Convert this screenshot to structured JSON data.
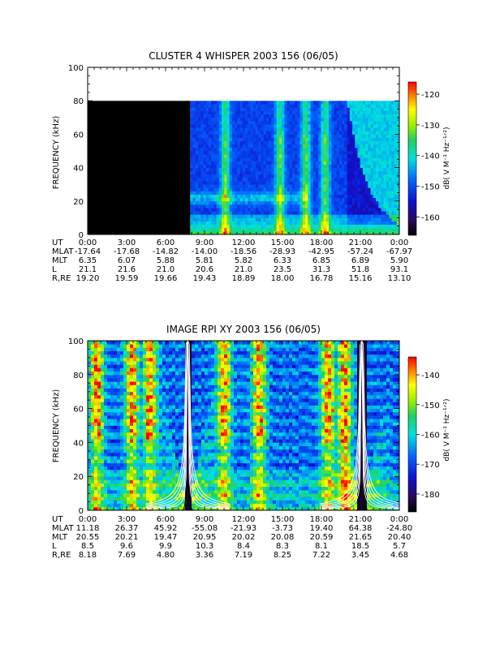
{
  "chart_data": [
    {
      "type": "heatmap",
      "title": "CLUSTER 4 WHISPER 2003 156 (06/05)",
      "ylabel": "FREQUENCY (kHz)",
      "ylim": [
        0,
        100
      ],
      "yticks": [
        0,
        20,
        40,
        60,
        80,
        100
      ],
      "xlim": [
        0,
        24
      ],
      "xtick_hours": [
        0,
        3,
        6,
        9,
        12,
        15,
        18,
        21,
        24
      ],
      "colorbar": {
        "label": "dB( V M⁻¹ Hz⁻¹ᐟ²)",
        "range": [
          -166,
          -116
        ],
        "ticks": [
          -120,
          -130,
          -140,
          -150,
          -160
        ]
      },
      "no_data_until_hour": 7.9,
      "frequency_ceiling_khz": 80,
      "ephemeris": {
        "labels": [
          "UT",
          "MLAT",
          "MLT",
          "L",
          "R,RE"
        ],
        "UT": [
          "0:00",
          "3:00",
          "6:00",
          "9:00",
          "12:00",
          "15:00",
          "18:00",
          "21:00",
          "0:00"
        ],
        "MLAT": [
          "-17.64",
          "-17.68",
          "-14.82",
          "-14.00",
          "-18.56",
          "-28.93",
          "-42.95",
          "-57.24",
          "-67.97"
        ],
        "MLT": [
          "6.35",
          "6.07",
          "5.88",
          "5.81",
          "5.82",
          "6.33",
          "6.85",
          "6.89",
          "5.90"
        ],
        "L": [
          "21.1",
          "21.6",
          "21.0",
          "20.6",
          "21.0",
          "23.5",
          "31.3",
          "51.8",
          "93.1"
        ],
        "R,RE": [
          "19.20",
          "19.59",
          "19.66",
          "19.43",
          "18.89",
          "18.00",
          "16.78",
          "15.16",
          "13.10"
        ]
      }
    },
    {
      "type": "heatmap",
      "title": "IMAGE RPI XY 2003 156 (06/05)",
      "ylabel": "FREQUENCY (kHz)",
      "ylim": [
        0,
        100
      ],
      "yticks": [
        0,
        20,
        40,
        60,
        80,
        100
      ],
      "xlim": [
        0,
        24
      ],
      "xtick_hours": [
        0,
        3,
        6,
        9,
        12,
        15,
        18,
        21,
        24
      ],
      "colorbar": {
        "label": "dB( V M⁻¹ Hz⁻¹ᐟ²)",
        "range": [
          -186,
          -134
        ],
        "ticks": [
          -140,
          -150,
          -160,
          -170,
          -180
        ]
      },
      "perigee_hours": [
        7.7,
        21.1
      ],
      "ephemeris": {
        "labels": [
          "UT",
          "MLAT",
          "MLT",
          "L",
          "R,RE"
        ],
        "UT": [
          "0:00",
          "3:00",
          "6:00",
          "9:00",
          "12:00",
          "15:00",
          "18:00",
          "21:00",
          "0:00"
        ],
        "MLAT": [
          "11.18",
          "26.37",
          "45.92",
          "-55.08",
          "-21.93",
          "-3.73",
          "19.40",
          "64.38",
          "-24.80"
        ],
        "MLT": [
          "20.55",
          "20.21",
          "19.47",
          "20.95",
          "20.02",
          "20.08",
          "20.59",
          "21.65",
          "20.40"
        ],
        "L": [
          "8.5",
          "9.6",
          "9.9",
          "10.3",
          "8.4",
          "8.3",
          "8.1",
          "18.5",
          "5.7"
        ],
        "R,RE": [
          "8.18",
          "7.69",
          "4.80",
          "3.36",
          "7.19",
          "8.25",
          "7.22",
          "3.45",
          "4.68"
        ]
      }
    }
  ]
}
